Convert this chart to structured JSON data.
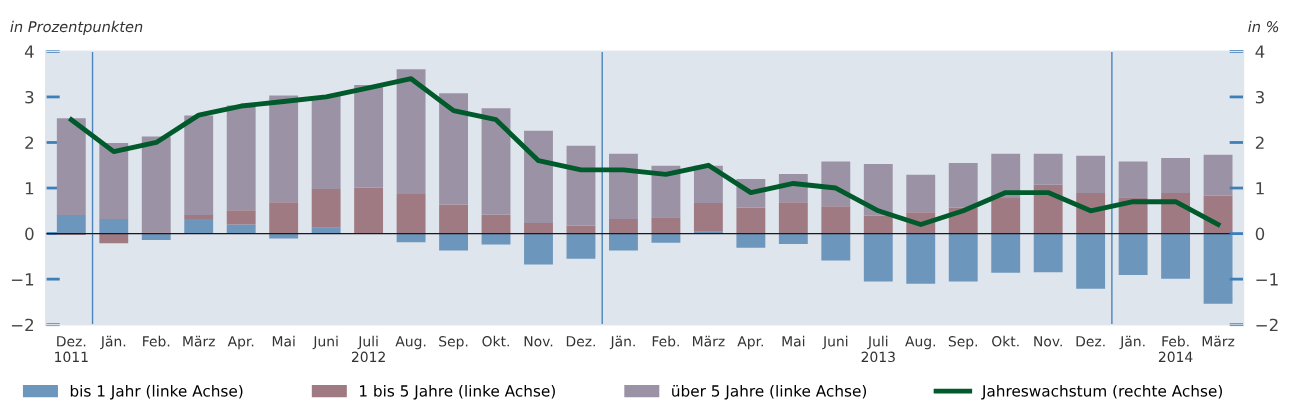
{
  "chart_data": {
    "type": "bar",
    "stacked": true,
    "ylabel": "in Prozentpunkten",
    "y2label": "in %",
    "categories": [
      "Dez.\n1011",
      "Jän.",
      "Feb.",
      "März",
      "Apr.",
      "Mai",
      "Juni",
      "Juli\n2012",
      "Aug.",
      "Sep.",
      "Okt.",
      "Nov.",
      "Dez.",
      "Jän.",
      "Feb.",
      "März",
      "Apr.",
      "Mai",
      "Juni",
      "Juli\n2013",
      "Aug.",
      "Sep.",
      "Okt.",
      "Nov.",
      "Dez.",
      "Jän.",
      "Feb.\n2014",
      "März"
    ],
    "series": [
      {
        "name": "bis 1 Jahr (linke Achse)",
        "color": "#6d96bc",
        "values": [
          0.41,
          0.32,
          -0.14,
          0.32,
          0.2,
          -0.11,
          0.13,
          0,
          -0.19,
          -0.37,
          -0.24,
          -0.68,
          -0.55,
          -0.37,
          -0.2,
          0.04,
          -0.31,
          -0.23,
          -0.59,
          -1.05,
          -1.1,
          -1.05,
          -0.86,
          -0.85,
          -1.21,
          -0.91,
          -0.99,
          -1.54
        ]
      },
      {
        "name": "1 bis 5 Jahre (linke Achse)",
        "color": "#a07a82",
        "values": [
          -0.03,
          -0.21,
          0.03,
          0.09,
          0.31,
          0.69,
          0.85,
          1.01,
          0.87,
          0.64,
          0.42,
          0.23,
          0.18,
          0.32,
          0.36,
          0.63,
          0.57,
          0.69,
          0.6,
          0.39,
          0.47,
          0.57,
          0.78,
          1.07,
          0.89,
          0.8,
          0.89,
          0.83
        ]
      },
      {
        "name": "über 5 Jahre (linke Achse)",
        "color": "#9b93a5",
        "values": [
          2.12,
          1.67,
          2.1,
          2.18,
          2.3,
          2.34,
          2.04,
          2.25,
          2.74,
          2.44,
          2.33,
          2.03,
          1.75,
          1.43,
          1.13,
          0.82,
          0.63,
          0.62,
          0.98,
          1.14,
          0.82,
          0.98,
          0.97,
          0.68,
          0.82,
          0.78,
          0.77,
          0.9
        ]
      },
      {
        "name": "Jahreswachstum (rechte Achse)",
        "type": "line",
        "axis": "y2",
        "color": "#005a2b",
        "values": [
          2.5,
          1.8,
          2.0,
          2.6,
          2.8,
          2.9,
          3.0,
          3.2,
          3.4,
          2.7,
          2.5,
          1.6,
          1.4,
          1.4,
          1.3,
          1.5,
          0.9,
          1.1,
          1.0,
          0.5,
          0.2,
          0.5,
          0.9,
          0.9,
          0.5,
          0.7,
          0.7,
          0.2
        ]
      }
    ],
    "ylim": [
      -2,
      4
    ],
    "yticks": [
      {
        "value": -2,
        "label": "−2"
      },
      {
        "value": -1,
        "label": "−1"
      },
      0,
      1,
      2,
      3,
      4
    ],
    "y2lim": [
      -2,
      4
    ],
    "y2ticks": [
      {
        "value": -2,
        "label": "−2"
      },
      {
        "value": -1,
        "label": "−1"
      },
      0,
      1,
      2,
      3,
      4
    ],
    "ref_lines": [
      {
        "axis": "y",
        "value": 0,
        "color": "#1a1a1a"
      }
    ],
    "grid": false,
    "legend": "bottom",
    "marker": "none",
    "line_style": "solid"
  }
}
